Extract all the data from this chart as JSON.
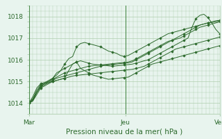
{
  "title": "",
  "xlabel": "Pression niveau de la mer( hPa )",
  "bg_color": "#e8f4ee",
  "grid_color": "#b0cfb0",
  "line_color": "#2d6a2d",
  "ylim": [
    1013.5,
    1018.5
  ],
  "day_labels": [
    "Mar",
    "Jeu",
    "Ven"
  ],
  "day_positions": [
    0,
    48,
    95
  ],
  "yticks": [
    1014,
    1015,
    1016,
    1017,
    1018
  ],
  "xlabel_fontsize": 7.5,
  "tick_fontsize": 6.5,
  "series": [
    [
      1014.0,
      1014.2,
      1014.6,
      1014.85,
      1014.95,
      1015.05,
      1015.15,
      1015.3,
      1015.5,
      1015.8,
      1016.05,
      1016.15,
      1016.6,
      1016.75,
      1016.8,
      1016.75,
      1016.7,
      1016.65,
      1016.6,
      1016.5,
      1016.4,
      1016.35,
      1016.3,
      1016.2,
      1016.15,
      1016.2,
      1016.3,
      1016.4,
      1016.5,
      1016.6,
      1016.7,
      1016.8,
      1016.9,
      1017.0,
      1017.1,
      1017.2,
      1017.25,
      1017.3,
      1017.35,
      1017.4,
      1017.45,
      1017.5,
      1017.55,
      1017.6,
      1017.65,
      1017.7,
      1017.72,
      1017.75,
      1017.8
    ],
    [
      1014.0,
      1014.15,
      1014.5,
      1014.75,
      1014.85,
      1014.95,
      1015.05,
      1015.15,
      1015.2,
      1015.25,
      1015.3,
      1015.35,
      1015.4,
      1015.45,
      1015.5,
      1015.55,
      1015.6,
      1015.65,
      1015.7,
      1015.74,
      1015.76,
      1015.78,
      1015.8,
      1015.82,
      1015.84,
      1015.86,
      1015.9,
      1016.0,
      1016.1,
      1016.2,
      1016.3,
      1016.4,
      1016.5,
      1016.6,
      1016.7,
      1016.8,
      1016.9,
      1017.0,
      1017.1,
      1017.2,
      1017.3,
      1017.4,
      1017.5,
      1017.6,
      1017.65,
      1017.7,
      1017.75,
      1017.8,
      1017.82
    ],
    [
      1014.0,
      1014.2,
      1014.5,
      1014.8,
      1014.9,
      1015.0,
      1015.1,
      1015.2,
      1015.3,
      1015.4,
      1015.45,
      1015.5,
      1015.55,
      1015.6,
      1015.65,
      1015.7,
      1015.72,
      1015.74,
      1015.76,
      1015.78,
      1015.8,
      1015.82,
      1015.84,
      1015.86,
      1015.88,
      1015.9,
      1015.95,
      1016.05,
      1016.15,
      1016.25,
      1016.35,
      1016.45,
      1016.55,
      1016.65,
      1016.75,
      1016.85,
      1016.9,
      1016.95,
      1017.0,
      1017.1,
      1017.2,
      1017.3,
      1017.4,
      1017.5,
      1017.55,
      1017.6,
      1017.65,
      1017.7,
      1017.75
    ],
    [
      1014.0,
      1014.1,
      1014.4,
      1014.7,
      1014.8,
      1014.9,
      1015.0,
      1015.05,
      1015.1,
      1015.15,
      1015.2,
      1015.25,
      1015.28,
      1015.3,
      1015.32,
      1015.34,
      1015.36,
      1015.38,
      1015.4,
      1015.42,
      1015.44,
      1015.46,
      1015.48,
      1015.5,
      1015.52,
      1015.54,
      1015.56,
      1015.6,
      1015.65,
      1015.7,
      1015.8,
      1015.9,
      1016.0,
      1016.1,
      1016.2,
      1016.3,
      1016.4,
      1016.5,
      1016.55,
      1016.6,
      1016.65,
      1016.7,
      1016.75,
      1016.8,
      1016.85,
      1016.9,
      1016.95,
      1017.0,
      1017.05
    ],
    [
      1014.0,
      1014.1,
      1014.5,
      1014.8,
      1014.9,
      1014.95,
      1015.0,
      1015.05,
      1015.1,
      1015.15,
      1015.5,
      1015.8,
      1015.9,
      1015.6,
      1015.5,
      1015.4,
      1015.3,
      1015.25,
      1015.2,
      1015.15,
      1015.1,
      1015.12,
      1015.14,
      1015.16,
      1015.18,
      1015.2,
      1015.3,
      1015.4,
      1015.5,
      1015.6,
      1015.7,
      1015.8,
      1015.85,
      1015.9,
      1015.95,
      1016.0,
      1016.05,
      1016.1,
      1016.15,
      1016.2,
      1016.25,
      1016.3,
      1016.35,
      1016.4,
      1016.45,
      1016.5,
      1016.55,
      1016.6,
      1016.65
    ],
    [
      1014.0,
      1014.3,
      1014.7,
      1014.9,
      1014.95,
      1015.0,
      1015.15,
      1015.4,
      1015.5,
      1015.6,
      1015.7,
      1015.8,
      1015.9,
      1015.95,
      1015.9,
      1015.85,
      1015.8,
      1015.78,
      1015.76,
      1015.74,
      1015.72,
      1015.7,
      1015.72,
      1015.74,
      1015.76,
      1015.78,
      1015.8,
      1015.85,
      1015.9,
      1015.95,
      1016.0,
      1016.1,
      1016.2,
      1016.3,
      1016.4,
      1016.5,
      1016.6,
      1016.7,
      1016.8,
      1016.9,
      1017.0,
      1017.5,
      1017.9,
      1018.05,
      1018.1,
      1017.95,
      1017.7,
      1017.4,
      1017.2
    ]
  ]
}
